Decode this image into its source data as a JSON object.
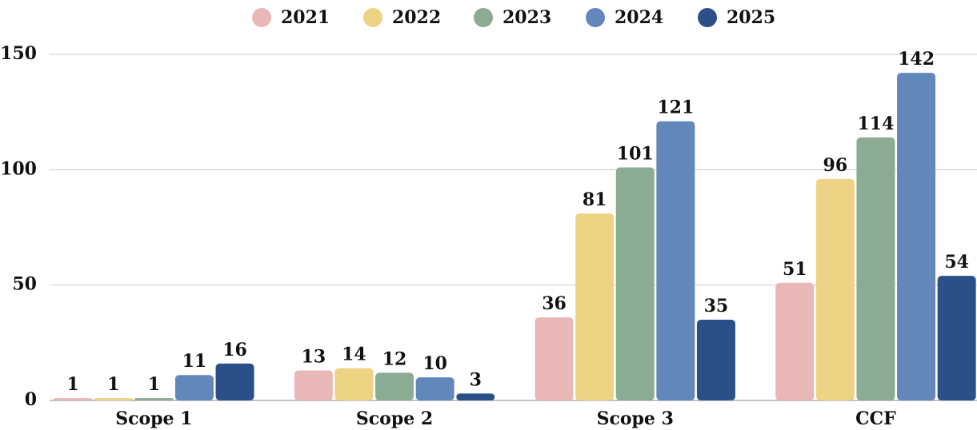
{
  "chart_data": {
    "type": "bar",
    "categories": [
      "Scope 1",
      "Scope 2",
      "Scope 3",
      "CCF"
    ],
    "series": [
      {
        "name": "2021",
        "color": "#e8b7b6",
        "values": [
          1,
          13,
          36,
          51
        ]
      },
      {
        "name": "2022",
        "color": "#efd385",
        "values": [
          1,
          14,
          81,
          96
        ]
      },
      {
        "name": "2023",
        "color": "#8bab92",
        "values": [
          1,
          12,
          101,
          114
        ]
      },
      {
        "name": "2024",
        "color": "#6287bb",
        "values": [
          11,
          10,
          121,
          142
        ]
      },
      {
        "name": "2025",
        "color": "#2b5089",
        "values": [
          16,
          3,
          35,
          54
        ]
      }
    ],
    "ylim": [
      0,
      150
    ],
    "yticks": [
      0,
      50,
      100,
      150
    ],
    "grid": true,
    "legend": "top"
  }
}
